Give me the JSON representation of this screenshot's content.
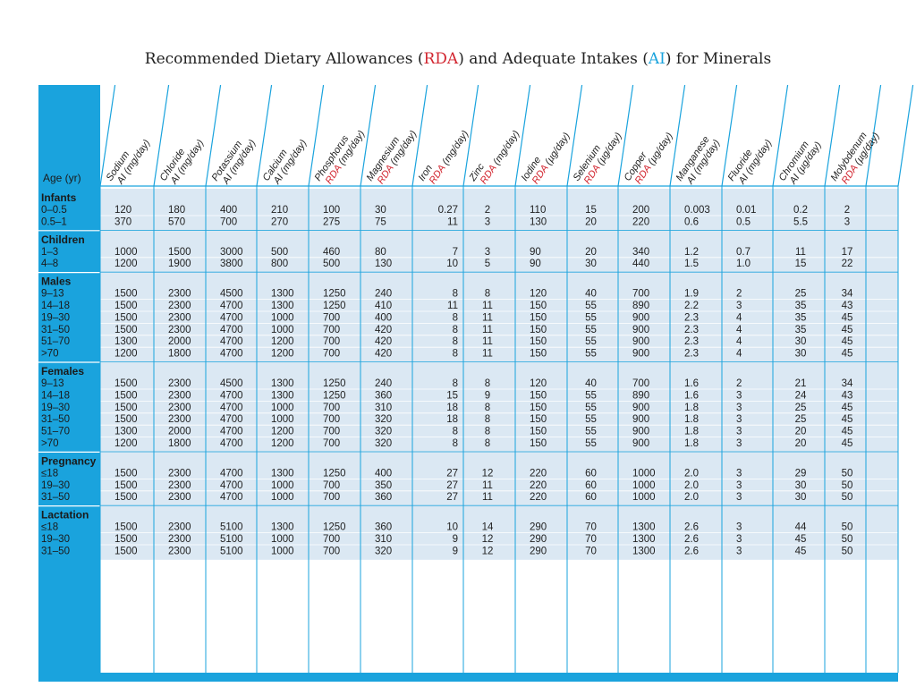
{
  "title": {
    "before": "Recommended Dietary Allowances (",
    "rda": "RDA",
    "middle": ") and Adequate Intakes (",
    "ai": "AI",
    "after": ") for Minerals"
  },
  "age_header": "Age (yr)",
  "colors": {
    "blue": "#1aa3dd",
    "red": "#d22630",
    "row_bg": "#dbe8f3",
    "text": "#222222"
  },
  "columns": [
    {
      "name": "Sodium",
      "type": "AI",
      "unit": "(mg/day)"
    },
    {
      "name": "Chloride",
      "type": "AI",
      "unit": "(mg/day)"
    },
    {
      "name": "Potassium",
      "type": "AI",
      "unit": "(mg/day)"
    },
    {
      "name": "Calcium",
      "type": "AI",
      "unit": "(mg/day)"
    },
    {
      "name": "Phosphorus",
      "type": "RDA",
      "unit": "(mg/day)"
    },
    {
      "name": "Magnesium",
      "type": "RDA",
      "unit": "(mg/day)"
    },
    {
      "name": "Iron",
      "type": "RDA",
      "unit": "(mg/day)"
    },
    {
      "name": "Zinc",
      "type": "RDA",
      "unit": "(mg/day)"
    },
    {
      "name": "Iodine",
      "type": "RDA",
      "unit": "(µg/day)"
    },
    {
      "name": "Selenium",
      "type": "RDA",
      "unit": "(µg/day)"
    },
    {
      "name": "Copper",
      "type": "RDA",
      "unit": "(µg/day)"
    },
    {
      "name": "Manganese",
      "type": "AI",
      "unit": "(mg/day)"
    },
    {
      "name": "Fluoride",
      "type": "AI",
      "unit": "(mg/day)"
    },
    {
      "name": "Chromium",
      "type": "AI",
      "unit": "(µg/day)"
    },
    {
      "name": "Molybdenum",
      "type": "RDA",
      "unit": "(µg/day)"
    }
  ],
  "groups": [
    {
      "name": "Infants",
      "rows": [
        {
          "age": "0–0.5",
          "values": [
            "120",
            "180",
            "400",
            "210",
            "100",
            "30",
            "0.27",
            "2",
            "110",
            "15",
            "200",
            "0.003",
            "0.01",
            "0.2",
            "2"
          ]
        },
        {
          "age": "0.5–1",
          "values": [
            "370",
            "570",
            "700",
            "270",
            "275",
            "75",
            "11",
            "3",
            "130",
            "20",
            "220",
            "0.6",
            "0.5",
            "5.5",
            "3"
          ]
        }
      ]
    },
    {
      "name": "Children",
      "rows": [
        {
          "age": "1–3",
          "values": [
            "1000",
            "1500",
            "3000",
            "500",
            "460",
            "80",
            "7",
            "3",
            "90",
            "20",
            "340",
            "1.2",
            "0.7",
            "11",
            "17"
          ]
        },
        {
          "age": "4–8",
          "values": [
            "1200",
            "1900",
            "3800",
            "800",
            "500",
            "130",
            "10",
            "5",
            "90",
            "30",
            "440",
            "1.5",
            "1.0",
            "15",
            "22"
          ]
        }
      ]
    },
    {
      "name": "Males",
      "rows": [
        {
          "age": "9–13",
          "values": [
            "1500",
            "2300",
            "4500",
            "1300",
            "1250",
            "240",
            "8",
            "8",
            "120",
            "40",
            "700",
            "1.9",
            "2",
            "25",
            "34"
          ]
        },
        {
          "age": "14–18",
          "values": [
            "1500",
            "2300",
            "4700",
            "1300",
            "1250",
            "410",
            "11",
            "11",
            "150",
            "55",
            "890",
            "2.2",
            "3",
            "35",
            "43"
          ]
        },
        {
          "age": "19–30",
          "values": [
            "1500",
            "2300",
            "4700",
            "1000",
            "700",
            "400",
            "8",
            "11",
            "150",
            "55",
            "900",
            "2.3",
            "4",
            "35",
            "45"
          ]
        },
        {
          "age": "31–50",
          "values": [
            "1500",
            "2300",
            "4700",
            "1000",
            "700",
            "420",
            "8",
            "11",
            "150",
            "55",
            "900",
            "2.3",
            "4",
            "35",
            "45"
          ]
        },
        {
          "age": "51–70",
          "values": [
            "1300",
            "2000",
            "4700",
            "1200",
            "700",
            "420",
            "8",
            "11",
            "150",
            "55",
            "900",
            "2.3",
            "4",
            "30",
            "45"
          ]
        },
        {
          "age": ">70",
          "values": [
            "1200",
            "1800",
            "4700",
            "1200",
            "700",
            "420",
            "8",
            "11",
            "150",
            "55",
            "900",
            "2.3",
            "4",
            "30",
            "45"
          ]
        }
      ]
    },
    {
      "name": "Females",
      "rows": [
        {
          "age": "9–13",
          "values": [
            "1500",
            "2300",
            "4500",
            "1300",
            "1250",
            "240",
            "8",
            "8",
            "120",
            "40",
            "700",
            "1.6",
            "2",
            "21",
            "34"
          ]
        },
        {
          "age": "14–18",
          "values": [
            "1500",
            "2300",
            "4700",
            "1300",
            "1250",
            "360",
            "15",
            "9",
            "150",
            "55",
            "890",
            "1.6",
            "3",
            "24",
            "43"
          ]
        },
        {
          "age": "19–30",
          "values": [
            "1500",
            "2300",
            "4700",
            "1000",
            "700",
            "310",
            "18",
            "8",
            "150",
            "55",
            "900",
            "1.8",
            "3",
            "25",
            "45"
          ]
        },
        {
          "age": "31–50",
          "values": [
            "1500",
            "2300",
            "4700",
            "1000",
            "700",
            "320",
            "18",
            "8",
            "150",
            "55",
            "900",
            "1.8",
            "3",
            "25",
            "45"
          ]
        },
        {
          "age": "51–70",
          "values": [
            "1300",
            "2000",
            "4700",
            "1200",
            "700",
            "320",
            "8",
            "8",
            "150",
            "55",
            "900",
            "1.8",
            "3",
            "20",
            "45"
          ]
        },
        {
          "age": ">70",
          "values": [
            "1200",
            "1800",
            "4700",
            "1200",
            "700",
            "320",
            "8",
            "8",
            "150",
            "55",
            "900",
            "1.8",
            "3",
            "20",
            "45"
          ]
        }
      ]
    },
    {
      "name": "Pregnancy",
      "rows": [
        {
          "age": "≤18",
          "values": [
            "1500",
            "2300",
            "4700",
            "1300",
            "1250",
            "400",
            "27",
            "12",
            "220",
            "60",
            "1000",
            "2.0",
            "3",
            "29",
            "50"
          ]
        },
        {
          "age": "19–30",
          "values": [
            "1500",
            "2300",
            "4700",
            "1000",
            "700",
            "350",
            "27",
            "11",
            "220",
            "60",
            "1000",
            "2.0",
            "3",
            "30",
            "50"
          ]
        },
        {
          "age": "31–50",
          "values": [
            "1500",
            "2300",
            "4700",
            "1000",
            "700",
            "360",
            "27",
            "11",
            "220",
            "60",
            "1000",
            "2.0",
            "3",
            "30",
            "50"
          ]
        }
      ]
    },
    {
      "name": "Lactation",
      "rows": [
        {
          "age": "≤18",
          "values": [
            "1500",
            "2300",
            "5100",
            "1300",
            "1250",
            "360",
            "10",
            "14",
            "290",
            "70",
            "1300",
            "2.6",
            "3",
            "44",
            "50"
          ]
        },
        {
          "age": "19–30",
          "values": [
            "1500",
            "2300",
            "5100",
            "1000",
            "700",
            "310",
            "9",
            "12",
            "290",
            "70",
            "1300",
            "2.6",
            "3",
            "45",
            "50"
          ]
        },
        {
          "age": "31–50",
          "values": [
            "1500",
            "2300",
            "5100",
            "1000",
            "700",
            "320",
            "9",
            "12",
            "290",
            "70",
            "1300",
            "2.6",
            "3",
            "45",
            "50"
          ]
        }
      ]
    }
  ]
}
